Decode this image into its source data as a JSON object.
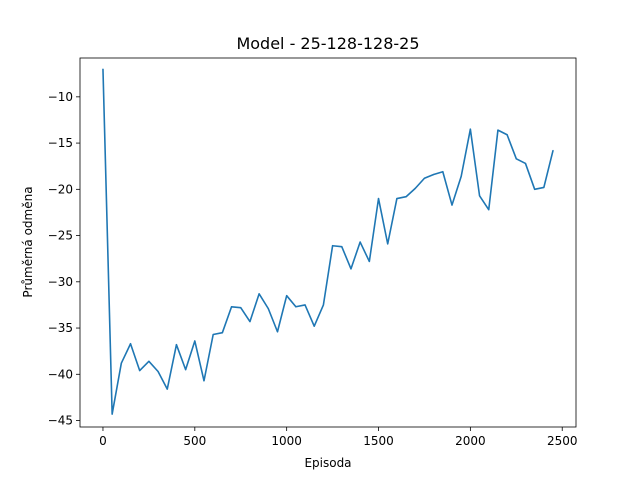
{
  "chart_data": {
    "type": "line",
    "title": "Model - 25-128-128-25",
    "xlabel": "Episoda",
    "ylabel": "Průměrná odměna",
    "xlim": [
      -125,
      2575
    ],
    "ylim": [
      -45.7,
      -5.8
    ],
    "xticks": [
      0,
      500,
      1000,
      1500,
      2000,
      2500
    ],
    "yticks": [
      -10,
      -15,
      -20,
      -25,
      -30,
      -35,
      -40,
      -45
    ],
    "grid": false,
    "legend": "none",
    "line_color": "#1f77b4",
    "x": [
      0,
      50,
      100,
      150,
      200,
      250,
      300,
      350,
      400,
      450,
      500,
      550,
      600,
      650,
      700,
      750,
      800,
      850,
      900,
      950,
      1000,
      1050,
      1100,
      1150,
      1200,
      1250,
      1300,
      1350,
      1400,
      1450,
      1500,
      1550,
      1600,
      1650,
      1700,
      1750,
      1800,
      1850,
      1900,
      1950,
      2000,
      2050,
      2100,
      2150,
      2200,
      2250,
      2300,
      2350,
      2400,
      2450
    ],
    "y": [
      -7.0,
      -44.3,
      -38.8,
      -36.7,
      -39.6,
      -38.6,
      -39.7,
      -41.6,
      -36.8,
      -39.5,
      -36.4,
      -40.7,
      -35.7,
      -35.5,
      -32.7,
      -32.8,
      -34.3,
      -31.3,
      -32.9,
      -35.4,
      -31.5,
      -32.7,
      -32.5,
      -34.8,
      -32.5,
      -26.1,
      -26.2,
      -28.6,
      -25.7,
      -27.8,
      -21.0,
      -25.9,
      -21.0,
      -20.8,
      -19.9,
      -18.8,
      -18.4,
      -18.1,
      -21.7,
      -18.6,
      -13.5,
      -20.7,
      -22.2,
      -13.6,
      -14.1,
      -16.7,
      -17.2,
      -20.0,
      -19.8,
      -15.8
    ]
  }
}
